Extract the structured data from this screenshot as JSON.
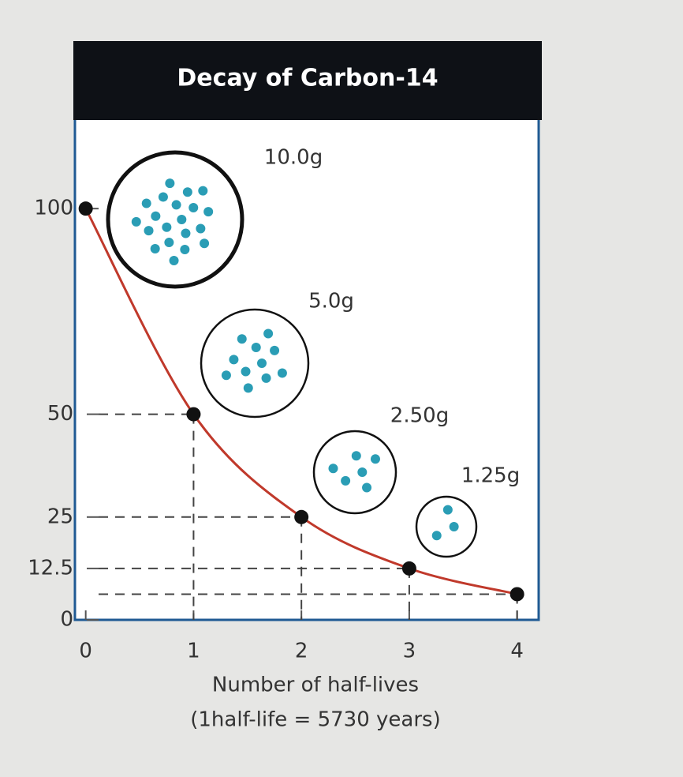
{
  "chart_data": {
    "type": "line",
    "title": "Decay of Carbon-14",
    "x": [
      0,
      1,
      2,
      3,
      4
    ],
    "values": [
      100,
      50,
      25,
      12.5,
      6.25
    ],
    "color": "#c0392b",
    "xlim": [
      -0.1,
      4.2
    ],
    "xticks": [
      0,
      1,
      2,
      3,
      4
    ],
    "ylim": [
      0,
      120
    ],
    "yticks": [
      0,
      12.5,
      25,
      50,
      100
    ],
    "guides": true,
    "mass_labels": [
      "10.0g",
      "5.0g",
      "2.50g",
      "1.25g"
    ],
    "xlabel": [
      "Number of half-lives",
      "(1half-life = 5730 years)"
    ]
  }
}
